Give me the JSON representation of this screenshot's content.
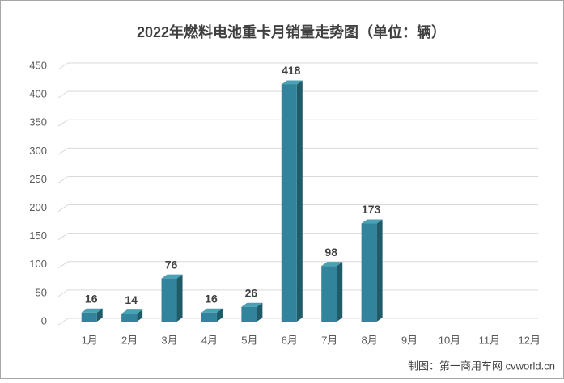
{
  "chart_data": {
    "type": "bar3d",
    "title": "2022年燃料电池重卡月销量走势图（单位：辆）",
    "categories": [
      "1月",
      "2月",
      "3月",
      "4月",
      "5月",
      "6月",
      "7月",
      "8月",
      "9月",
      "10月",
      "11月",
      "12月"
    ],
    "values": [
      16,
      14,
      76,
      16,
      26,
      418,
      98,
      173,
      null,
      null,
      null,
      null
    ],
    "color": "#31849b",
    "ylim": [
      0,
      450
    ],
    "yticks": [
      0,
      50,
      100,
      150,
      200,
      250,
      300,
      350,
      400,
      450
    ],
    "grid": true,
    "source": "制图：第一商用车网 cvworld.cn"
  }
}
